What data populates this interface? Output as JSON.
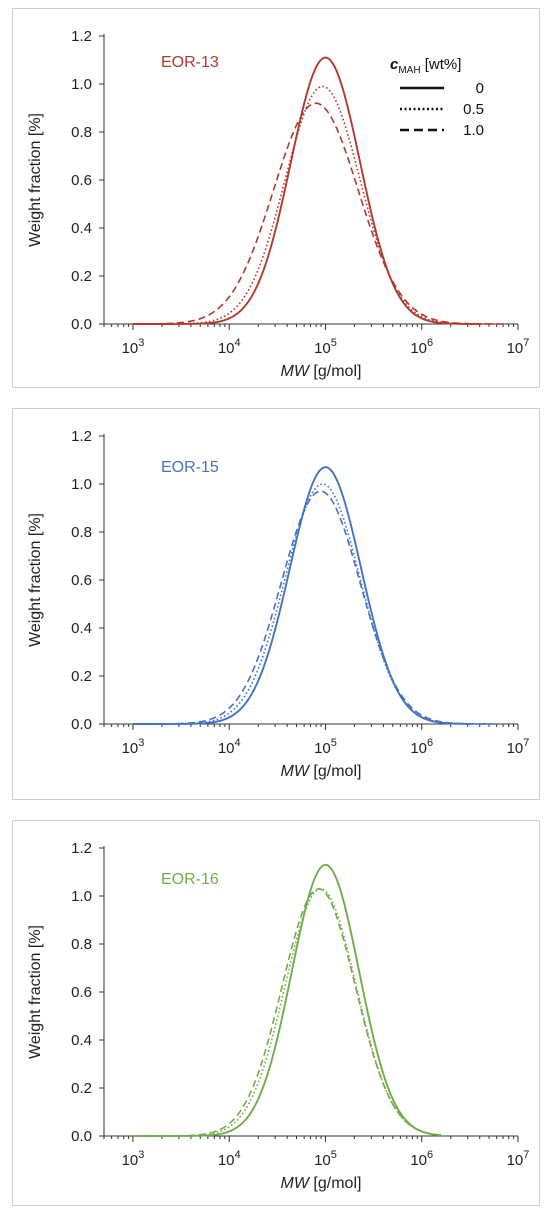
{
  "chart_data": [
    {
      "type": "line",
      "label": "EOR-13",
      "color": "#b03a2e",
      "xlabel_italic": "MW",
      "xlabel_rest": " [g/mol]",
      "ylabel": "Weight fraction [%]",
      "xscale": "log",
      "xlim": [
        500,
        10000000
      ],
      "ylim": [
        0,
        1.2
      ],
      "yticks": [
        "0.0",
        "0.2",
        "0.4",
        "0.6",
        "0.8",
        "1.0",
        "1.2"
      ],
      "xticks": [
        {
          "base": "10",
          "exp": "3"
        },
        {
          "base": "10",
          "exp": "4"
        },
        {
          "base": "10",
          "exp": "5"
        },
        {
          "base": "10",
          "exp": "6"
        },
        {
          "base": "10",
          "exp": "7"
        }
      ],
      "legend": {
        "title_main": "c",
        "title_sub": "MAH",
        "title_rest": " [wt%]",
        "entries": [
          "0",
          "0.5",
          "1.0"
        ]
      },
      "series": [
        {
          "mu": 5.0,
          "sigma": 0.36,
          "peak": 1.11,
          "start": 3.0,
          "end": 6.6,
          "dash": "solid"
        },
        {
          "mu": 4.97,
          "sigma": 0.39,
          "peak": 0.99,
          "start": 3.0,
          "end": 6.8,
          "dash": "dotted"
        },
        {
          "mu": 4.9,
          "sigma": 0.44,
          "peak": 0.92,
          "start": 3.0,
          "end": 6.9,
          "dash": "dashed"
        }
      ]
    },
    {
      "type": "line",
      "label": "EOR-15",
      "color": "#4472c4",
      "xlabel_italic": "MW",
      "xlabel_rest": " [g/mol]",
      "ylabel": "Weight fraction [%]",
      "xscale": "log",
      "xlim": [
        500,
        10000000
      ],
      "ylim": [
        0,
        1.2
      ],
      "yticks": [
        "0.0",
        "0.2",
        "0.4",
        "0.6",
        "0.8",
        "1.0",
        "1.2"
      ],
      "xticks": [
        {
          "base": "10",
          "exp": "3"
        },
        {
          "base": "10",
          "exp": "4"
        },
        {
          "base": "10",
          "exp": "5"
        },
        {
          "base": "10",
          "exp": "6"
        },
        {
          "base": "10",
          "exp": "7"
        }
      ],
      "series": [
        {
          "mu": 5.0,
          "sigma": 0.37,
          "peak": 1.07,
          "start": 3.0,
          "end": 6.5,
          "dash": "solid"
        },
        {
          "mu": 4.97,
          "sigma": 0.39,
          "peak": 1.0,
          "start": 3.0,
          "end": 6.7,
          "dash": "dotted"
        },
        {
          "mu": 4.95,
          "sigma": 0.41,
          "peak": 0.97,
          "start": 3.0,
          "end": 6.8,
          "dash": "dashed"
        }
      ]
    },
    {
      "type": "line",
      "label": "EOR-16",
      "color": "#70ad47",
      "xlabel_italic": "MW",
      "xlabel_rest": " [g/mol]",
      "ylabel": "Weight fraction [%]",
      "xscale": "log",
      "xlim": [
        500,
        10000000
      ],
      "ylim": [
        0,
        1.2
      ],
      "yticks": [
        "0.0",
        "0.2",
        "0.4",
        "0.6",
        "0.8",
        "1.0",
        "1.2"
      ],
      "xticks": [
        {
          "base": "10",
          "exp": "3"
        },
        {
          "base": "10",
          "exp": "4"
        },
        {
          "base": "10",
          "exp": "5"
        },
        {
          "base": "10",
          "exp": "6"
        },
        {
          "base": "10",
          "exp": "7"
        }
      ],
      "series": [
        {
          "mu": 5.0,
          "sigma": 0.35,
          "peak": 1.13,
          "start": 3.0,
          "end": 6.2,
          "dash": "solid"
        },
        {
          "mu": 4.95,
          "sigma": 0.37,
          "peak": 1.03,
          "start": 3.0,
          "end": 6.2,
          "dash": "dotted"
        },
        {
          "mu": 4.93,
          "sigma": 0.38,
          "peak": 1.03,
          "start": 3.0,
          "end": 6.2,
          "dash": "dashed"
        }
      ]
    }
  ]
}
